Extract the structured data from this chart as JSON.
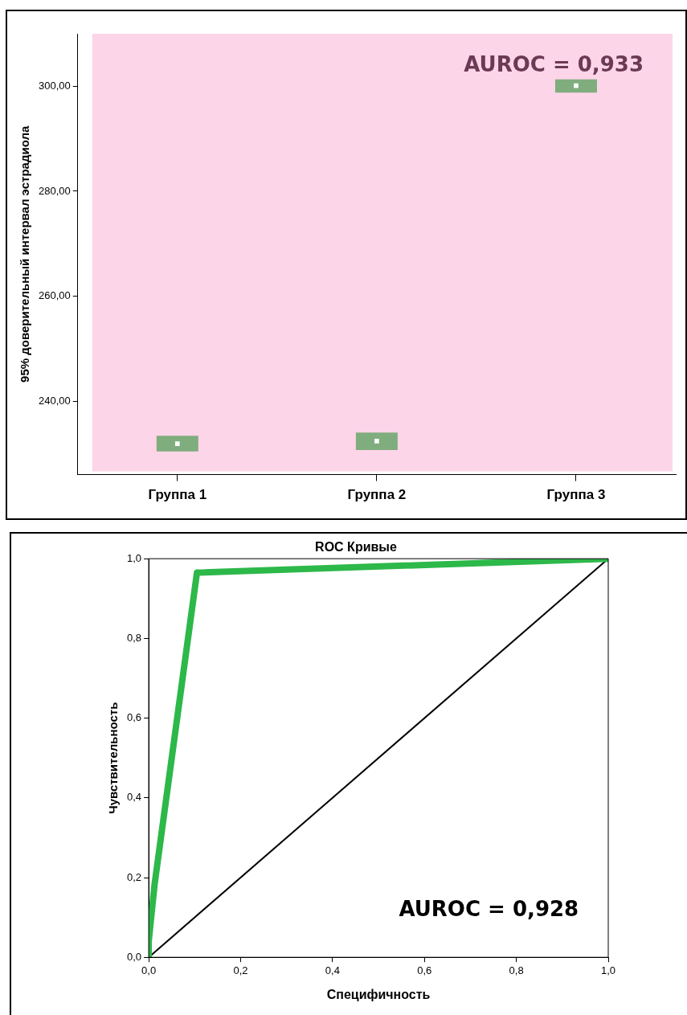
{
  "chart_data": [
    {
      "type": "scatter",
      "ylabel": "95% доверительный интервал эстрадиола",
      "categories": [
        "Группа 1",
        "Группа 2",
        "Группа 3"
      ],
      "color": "#80ad7d",
      "series": [
        {
          "color": "#ffffff",
          "values": [
            231.9,
            232.4,
            300.1
          ],
          "errors": [
            [
              230.4,
              233.4
            ],
            [
              230.7,
              234.0
            ],
            [
              298.8,
              301.3
            ]
          ]
        }
      ],
      "ylim": [
        226,
        310
      ],
      "yticks": [
        {
          "value": 240,
          "label": "240,00"
        },
        {
          "value": 260,
          "label": "260,00"
        },
        {
          "value": 280,
          "label": "280,00"
        },
        {
          "value": 300,
          "label": "300,00"
        }
      ],
      "grid": false,
      "legend": false,
      "marker": "square",
      "annotations": [
        "AUROC = 0,933"
      ]
    },
    {
      "type": "line",
      "title": "ROC Кривые",
      "xlabel": "Специфичность",
      "ylabel": "Чувствительность",
      "series": [
        {
          "color": "#2db84a",
          "x": [
            0,
            0,
            0.013,
            0.105,
            1
          ],
          "values": [
            0,
            0.04,
            0.185,
            0.965,
            1
          ]
        },
        {
          "color": "#000000",
          "x": [
            0,
            1
          ],
          "values": [
            0,
            1
          ]
        }
      ],
      "xlim": [
        0,
        1
      ],
      "ylim": [
        0,
        1
      ],
      "xticks": [
        {
          "value": 0,
          "label": "0,0"
        },
        {
          "value": 0.2,
          "label": "0,2"
        },
        {
          "value": 0.4,
          "label": "0,4"
        },
        {
          "value": 0.6,
          "label": "0,6"
        },
        {
          "value": 0.8,
          "label": "0,8"
        },
        {
          "value": 1,
          "label": "1,0"
        }
      ],
      "yticks": [
        {
          "value": 0,
          "label": "0,0"
        },
        {
          "value": 0.2,
          "label": "0,2"
        },
        {
          "value": 0.4,
          "label": "0,4"
        },
        {
          "value": 0.6,
          "label": "0,6"
        },
        {
          "value": 0.8,
          "label": "0,8"
        },
        {
          "value": 1,
          "label": "1,0"
        }
      ],
      "grid": false,
      "legend": false,
      "marker": "none",
      "annotations": [
        "AUROC = 0,928"
      ]
    }
  ]
}
